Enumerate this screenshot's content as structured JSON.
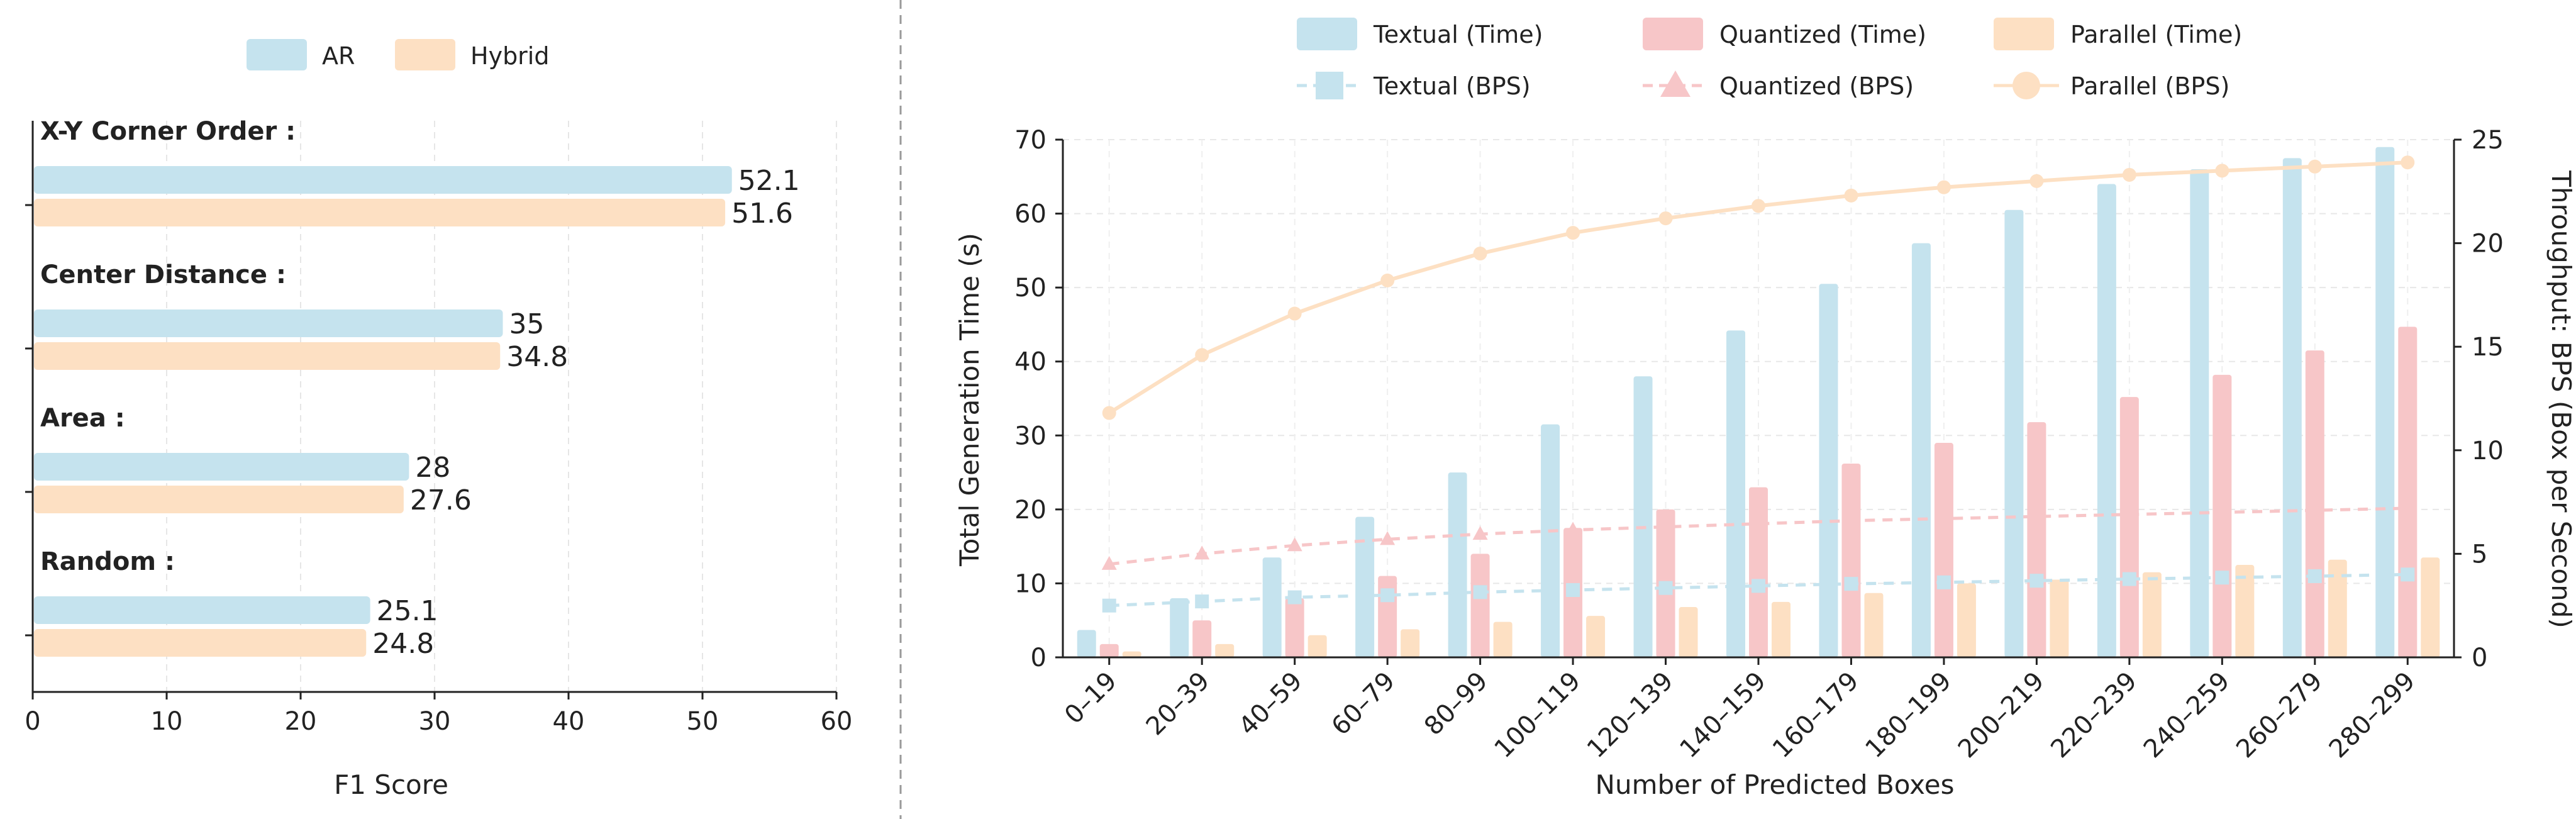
{
  "chart_data": [
    {
      "type": "bar",
      "orientation": "horizontal",
      "title": "",
      "xlabel": "F1 Score",
      "ylabel": "",
      "xlim": [
        0,
        60
      ],
      "xticks": [
        0,
        10,
        20,
        30,
        40,
        50,
        60
      ],
      "grid": true,
      "legend_position": "top",
      "categories": [
        "X-Y Corner Order :",
        "Center Distance :",
        "Area :",
        "Random :"
      ],
      "series": [
        {
          "name": "AR",
          "color": "#c5e3ee",
          "values": [
            52.1,
            35,
            28,
            25.1
          ],
          "labels": [
            "52.1",
            "35",
            "28",
            "25.1"
          ]
        },
        {
          "name": "Hybrid",
          "color": "#fde0c3",
          "values": [
            51.6,
            34.8,
            27.6,
            24.8
          ],
          "labels": [
            "51.6",
            "34.8",
            "27.6",
            "24.8"
          ]
        }
      ]
    },
    {
      "type": "bar",
      "title": "",
      "xlabel": "Number of Predicted Boxes",
      "ylabel": "Total Generation Time (s)",
      "y2label": "Throughput: BPS (Box per Second)",
      "ylim": [
        0,
        70
      ],
      "yticks": [
        0,
        10,
        20,
        30,
        40,
        50,
        60,
        70
      ],
      "y2lim": [
        0,
        25
      ],
      "y2ticks": [
        0,
        5,
        10,
        15,
        20,
        25
      ],
      "grid": true,
      "legend_position": "top",
      "categories": [
        "0–19",
        "20–39",
        "40–59",
        "60–79",
        "80–99",
        "100–119",
        "120–139",
        "140–159",
        "160–179",
        "180–199",
        "200–219",
        "220–239",
        "240–259",
        "260–279",
        "280–299"
      ],
      "series": [
        {
          "name": "Textual (Time)",
          "kind": "bar",
          "axis": "left",
          "color": "#c5e3ee",
          "values": [
            3.7,
            8,
            13.5,
            19,
            25,
            31.5,
            38,
            44.2,
            50.5,
            56,
            60.5,
            64,
            66,
            67.5,
            69
          ]
        },
        {
          "name": "Quantized (Time)",
          "kind": "bar",
          "axis": "left",
          "color": "#f7c6c8",
          "values": [
            1.8,
            5,
            8,
            11,
            14,
            17.5,
            20,
            23,
            26.2,
            29,
            31.8,
            35.2,
            38.2,
            41.5,
            44.7
          ]
        },
        {
          "name": "Parallel (Time)",
          "kind": "bar",
          "axis": "left",
          "color": "#fde0c3",
          "values": [
            0.8,
            1.8,
            3,
            3.8,
            4.8,
            5.6,
            6.8,
            7.5,
            8.7,
            10,
            10.5,
            11.5,
            12.5,
            13.2,
            13.5
          ]
        },
        {
          "name": "Textual (BPS)",
          "kind": "line",
          "axis": "right",
          "marker": "square",
          "dash": true,
          "color": "#c5e3ee",
          "values": [
            2.5,
            2.7,
            2.9,
            3.0,
            3.15,
            3.25,
            3.35,
            3.45,
            3.55,
            3.62,
            3.7,
            3.78,
            3.85,
            3.92,
            4.0
          ]
        },
        {
          "name": "Quantized (BPS)",
          "kind": "line",
          "axis": "right",
          "marker": "triangle",
          "dash": true,
          "color": "#f7c6c8",
          "values": [
            4.5,
            5.0,
            5.4,
            5.7,
            5.95,
            6.15,
            6.3,
            6.45,
            6.6,
            6.7,
            6.8,
            6.9,
            7.0,
            7.1,
            7.2
          ]
        },
        {
          "name": "Parallel (BPS)",
          "kind": "line",
          "axis": "right",
          "marker": "circle",
          "dash": false,
          "color": "#fde0c3",
          "values": [
            11.8,
            14.6,
            16.6,
            18.2,
            19.5,
            20.5,
            21.2,
            21.8,
            22.3,
            22.7,
            23.0,
            23.3,
            23.5,
            23.7,
            23.9
          ]
        }
      ]
    }
  ]
}
